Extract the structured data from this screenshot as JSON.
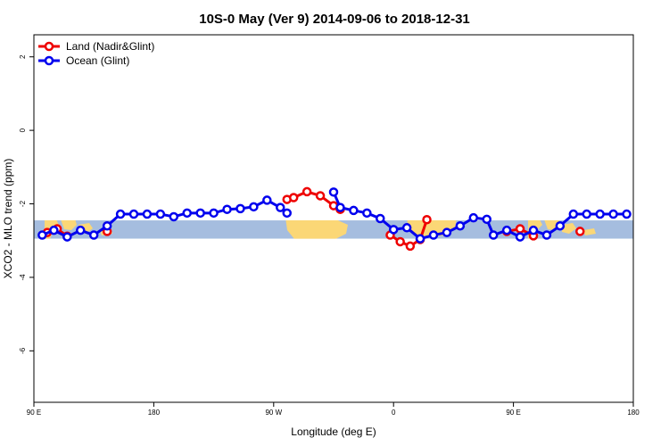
{
  "chart_data": {
    "type": "line",
    "title": "10S-0 May (Ver 9)   2014-09-06 to 2018-12-31",
    "xlabel": "Longitude (deg E)",
    "ylabel": "XCO2 - MLO trend (ppm)",
    "xlim": [
      90,
      450
    ],
    "ylim": [
      -7.4,
      2.6
    ],
    "x_ticks": [
      90,
      162,
      234,
      306,
      378,
      450
    ],
    "x_tick_labels": [
      "90 E",
      "180",
      "90 W",
      "0",
      "90 E",
      "180"
    ],
    "y_ticks": [
      -6,
      -4,
      -2,
      0,
      2
    ],
    "y_tick_labels": [
      "-6",
      "-4",
      "-2",
      "0",
      "2"
    ],
    "grid": false,
    "legend_position": "top-left",
    "colors": {
      "land": "#ee0000",
      "ocean": "#0000ee",
      "map_ocean": "#a5bddf",
      "map_land": "#fbd776"
    },
    "map_band": {
      "ymin": -2.95,
      "ymax": -2.45
    },
    "series": [
      {
        "name": "Land (Nadir&Glint)",
        "key": "land",
        "segments": [
          {
            "x": [
              98,
              104,
              110
            ],
            "y": [
              -2.78,
              -2.68,
              -2.88
            ]
          },
          {
            "x": [
              134
            ],
            "y": [
              -2.75
            ]
          },
          {
            "x": [
              242,
              246,
              254,
              262,
              270,
              274
            ],
            "y": [
              -1.88,
              -1.83,
              -1.67,
              -1.78,
              -2.05,
              -2.15
            ]
          },
          {
            "x": [
              304,
              310,
              316,
              322,
              326
            ],
            "y": [
              -2.85,
              -3.03,
              -3.15,
              -2.97,
              -2.43
            ]
          },
          {
            "x": [
              374,
              382,
              390
            ],
            "y": [
              -2.75,
              -2.68,
              -2.87
            ]
          },
          {
            "x": [
              418
            ],
            "y": [
              -2.75
            ]
          }
        ]
      },
      {
        "name": "Ocean (Glint)",
        "key": "ocean",
        "segments": [
          {
            "x": [
              95,
              102,
              110,
              118,
              126,
              134,
              142,
              150,
              158,
              166,
              174,
              182,
              190,
              198,
              206,
              214,
              222,
              230,
              238,
              242
            ],
            "y": [
              -2.85,
              -2.72,
              -2.9,
              -2.72,
              -2.85,
              -2.6,
              -2.28,
              -2.28,
              -2.28,
              -2.28,
              -2.35,
              -2.25,
              -2.25,
              -2.25,
              -2.15,
              -2.13,
              -2.08,
              -1.9,
              -2.1,
              -2.25
            ]
          },
          {
            "x": [
              270,
              274,
              282,
              290,
              298,
              306,
              314,
              322,
              330,
              338,
              346,
              354,
              362,
              366,
              374,
              382,
              390,
              398,
              406,
              414,
              422,
              430,
              438,
              446
            ],
            "y": [
              -1.68,
              -2.1,
              -2.18,
              -2.25,
              -2.4,
              -2.7,
              -2.65,
              -2.95,
              -2.85,
              -2.78,
              -2.6,
              -2.38,
              -2.42,
              -2.85,
              -2.72,
              -2.9,
              -2.72,
              -2.85,
              -2.6,
              -2.28,
              -2.28,
              -2.28,
              -2.28,
              -2.28
            ]
          }
        ]
      }
    ]
  }
}
